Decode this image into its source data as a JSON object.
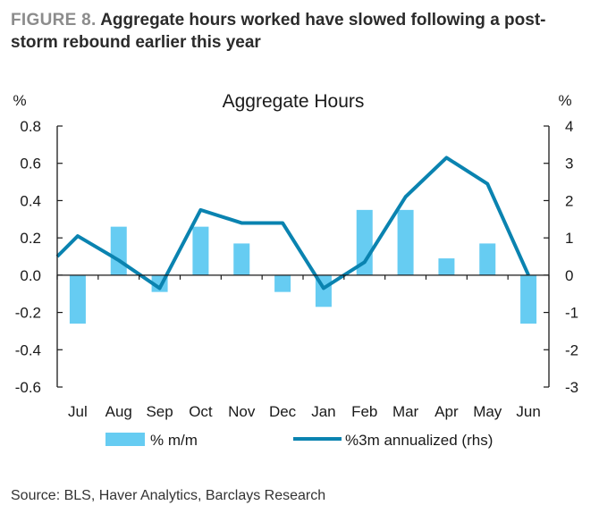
{
  "figure": {
    "label": "FIGURE 8.",
    "title": "Aggregate hours worked have slowed following a post-storm rebound earlier this year"
  },
  "source": "Source: BLS, Haver Analytics, Barclays Research",
  "colors": {
    "bars": "#66ccf2",
    "line": "#0a83b0",
    "axis": "#1a1a1a"
  },
  "chart_data": {
    "type": "bar",
    "title": "Aggregate Hours",
    "categories": [
      "Jul",
      "Aug",
      "Sep",
      "Oct",
      "Nov",
      "Dec",
      "Jan",
      "Feb",
      "Mar",
      "Apr",
      "May",
      "Jun"
    ],
    "series": [
      {
        "name": "% m/m",
        "type": "bar",
        "axis": "left",
        "values": [
          -0.26,
          0.26,
          -0.09,
          0.26,
          0.17,
          -0.09,
          -0.17,
          0.35,
          0.35,
          0.09,
          0.17,
          -0.26
        ]
      },
      {
        "name": "%3m annualized (rhs)",
        "type": "line",
        "axis": "right",
        "values": [
          1.05,
          0.4,
          -0.35,
          1.75,
          1.4,
          1.4,
          -0.35,
          0.35,
          2.1,
          3.15,
          2.45,
          0.0
        ]
      }
    ],
    "y_left": {
      "unit": "%",
      "ylim": [
        -0.6,
        0.8
      ],
      "ticks": [
        "0.8",
        "0.6",
        "0.4",
        "0.2",
        "0.0",
        "-0.2",
        "-0.4",
        "-0.6"
      ]
    },
    "y_right": {
      "unit": "%",
      "ylim": [
        -3,
        4
      ],
      "ticks": [
        "4",
        "3",
        "2",
        "1",
        "0",
        "-1",
        "-2",
        "-3"
      ]
    },
    "line_start_value": 0.5,
    "grid": false,
    "legend_position": "bottom"
  }
}
